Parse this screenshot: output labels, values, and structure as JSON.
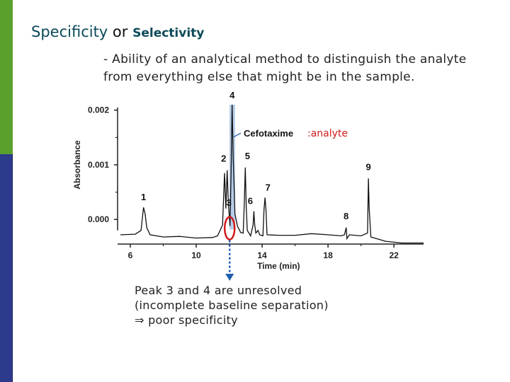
{
  "theme": {
    "green": "#5aa02c",
    "blue": "#2d3b8c",
    "highlight": "#b7cde8",
    "accent_blue": "#1f5fb0",
    "ring": "#d11a1a",
    "analyte_text": "#d11a1a",
    "title_color": "#0b4a5a"
  },
  "slide": {
    "title_word1": "Specificity",
    "title_word2": "or",
    "title_word3": "Selectivity",
    "definition_line1": "- Ability of an analytical method to distinguish the analyte",
    "definition_line2": "from everything else that might be in the sample.",
    "note_line1": "Peak 3 and 4 are unresolved",
    "note_line2": "(incomplete baseline separation)",
    "note_line3": "⇒ poor specificity"
  },
  "chart_data": {
    "type": "line",
    "xlabel": "Time (min)",
    "ylabel": "Absorbance",
    "x_ticks": [
      6,
      10,
      14,
      18,
      22
    ],
    "y_ticks": [
      "0.000",
      "0.001",
      "0.002"
    ],
    "xlim": [
      5.4,
      23.8
    ],
    "ylim": [
      -0.00045,
      0.0021
    ],
    "series": [
      {
        "points": [
          [
            5.4,
            -0.00028
          ],
          [
            6.3,
            -0.00027
          ],
          [
            6.65,
            -0.0002
          ],
          [
            6.8,
            0.00022
          ],
          [
            6.9,
            0.0001
          ],
          [
            7.0,
            -0.00015
          ],
          [
            7.2,
            -0.00028
          ],
          [
            8.0,
            -0.00032
          ],
          [
            9.0,
            -0.00031
          ],
          [
            10.0,
            -0.00034
          ],
          [
            11.0,
            -0.00033
          ],
          [
            11.3,
            -0.0003
          ],
          [
            11.6,
            -0.0001
          ],
          [
            11.72,
            0.00085
          ],
          [
            11.8,
            0.0002
          ],
          [
            11.88,
            0.0009
          ],
          [
            11.95,
            0.0003
          ],
          [
            12.05,
            -0.00012
          ],
          [
            12.12,
            0.0009
          ],
          [
            12.18,
            0.0021
          ],
          [
            12.25,
            0.0011
          ],
          [
            12.35,
            0.0001
          ],
          [
            12.5,
            -0.00012
          ],
          [
            12.7,
            -0.00024
          ],
          [
            12.85,
            -0.00025
          ],
          [
            12.92,
            0.0003
          ],
          [
            12.98,
            0.00095
          ],
          [
            13.04,
            0.0002
          ],
          [
            13.1,
            -0.0002
          ],
          [
            13.3,
            -0.0003
          ],
          [
            13.45,
            -0.0001
          ],
          [
            13.5,
            0.00015
          ],
          [
            13.55,
            -0.0001
          ],
          [
            13.62,
            -0.00025
          ],
          [
            13.75,
            -0.0002
          ],
          [
            13.85,
            -0.00028
          ],
          [
            14.05,
            -0.0003
          ],
          [
            14.12,
            0.0002
          ],
          [
            14.18,
            0.0004
          ],
          [
            14.24,
            0.00015
          ],
          [
            14.3,
            -0.00028
          ],
          [
            15.0,
            -0.00029
          ],
          [
            16.0,
            -0.00029
          ],
          [
            17.0,
            -0.00026
          ],
          [
            18.0,
            -0.00028
          ],
          [
            18.8,
            -0.0003
          ],
          [
            19.0,
            -0.00028
          ],
          [
            19.1,
            -0.00015
          ],
          [
            19.15,
            -0.00035
          ],
          [
            19.3,
            -0.00028
          ],
          [
            20.0,
            -0.0003
          ],
          [
            20.4,
            -0.00025
          ],
          [
            20.45,
            0.00075
          ],
          [
            20.5,
            0.0002
          ],
          [
            20.6,
            -0.00032
          ],
          [
            21.5,
            -0.0004
          ],
          [
            22.5,
            -0.00043
          ],
          [
            23.8,
            -0.00043
          ]
        ]
      }
    ],
    "peaks": [
      {
        "label": "1",
        "x": 6.8,
        "y": 0.00022
      },
      {
        "label": "2",
        "x": 11.88,
        "y": 0.0009
      },
      {
        "label": "3",
        "x": 11.95,
        "y": 0.0003
      },
      {
        "label": "4",
        "x": 12.18,
        "y": 0.0021
      },
      {
        "label": "5",
        "x": 12.98,
        "y": 0.00095
      },
      {
        "label": "6",
        "x": 13.5,
        "y": 0.00015
      },
      {
        "label": "7",
        "x": 14.18,
        "y": 0.0004
      },
      {
        "label": "8",
        "x": 19.1,
        "y": -0.00015
      },
      {
        "label": "9",
        "x": 20.45,
        "y": 0.00075
      }
    ],
    "highlight": {
      "x_start": 12.02,
      "x_end": 12.36
    },
    "annotation_label": "Cefotaxime",
    "analyte_label": ":analyte"
  }
}
